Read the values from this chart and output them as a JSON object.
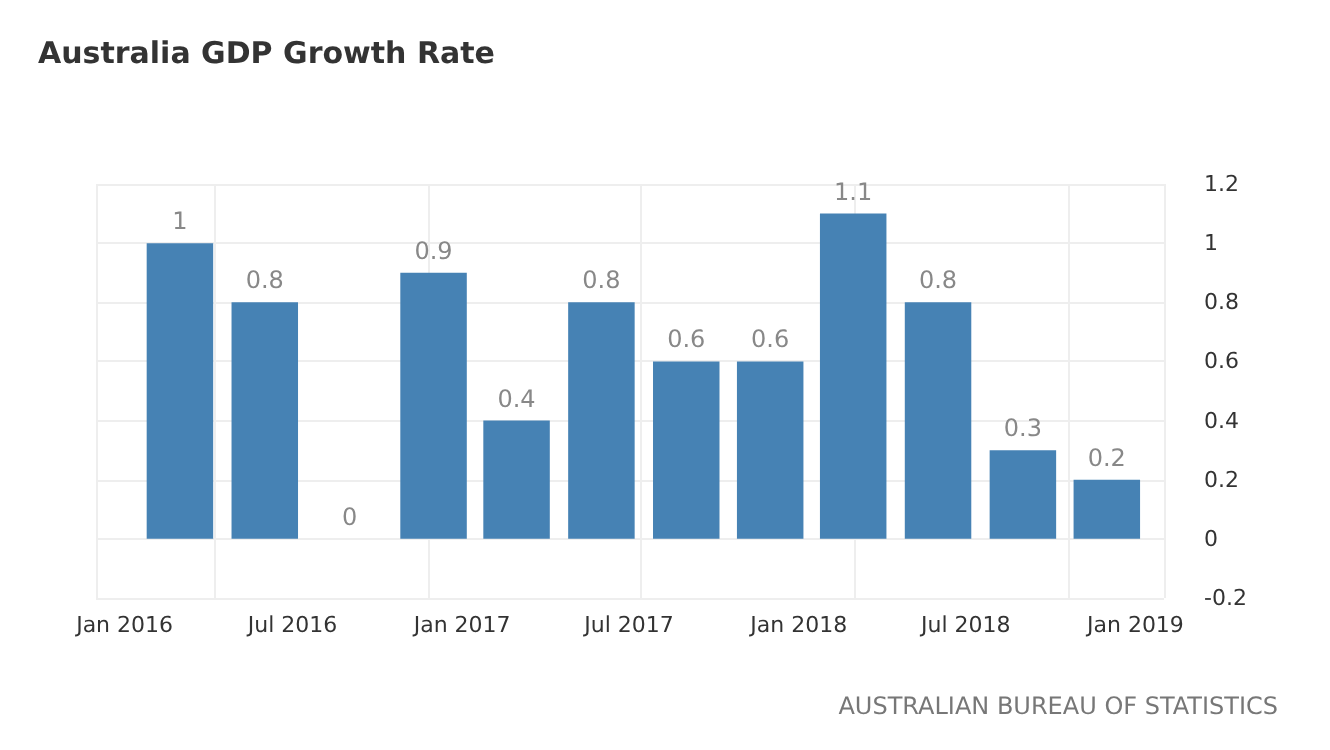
{
  "chart_data": {
    "type": "bar",
    "title": "Australia GDP Growth Rate",
    "x": [
      "2016-03",
      "2016-06",
      "2016-09",
      "2016-12",
      "2017-03",
      "2017-06",
      "2017-09",
      "2017-12",
      "2018-03",
      "2018-06",
      "2018-09",
      "2018-12"
    ],
    "values": [
      1,
      0.8,
      0,
      0.9,
      0.4,
      0.8,
      0.6,
      0.6,
      1.1,
      0.8,
      0.3,
      0.2
    ],
    "color": "#4682b4",
    "xlim": [
      "2015-12",
      "2019-02"
    ],
    "xticks": [
      {
        "value": "2016-01",
        "label": "Jan 2016"
      },
      {
        "value": "2016-07",
        "label": "Jul 2016"
      },
      {
        "value": "2017-01",
        "label": "Jan 2017"
      },
      {
        "value": "2017-07",
        "label": "Jul 2017"
      },
      {
        "value": "2018-01",
        "label": "Jan 2018"
      },
      {
        "value": "2018-07",
        "label": "Jul 2018"
      },
      {
        "value": "2019-01",
        "label": "Jan 2019"
      }
    ],
    "ylim": [
      -0.2,
      1.2
    ],
    "yticks": [
      -0.2,
      0,
      0.2,
      0.4,
      0.6,
      0.8,
      1,
      1.2
    ],
    "grid": true,
    "data_labels": true,
    "annotations": [
      "AUSTRALIAN BUREAU OF STATISTICS"
    ]
  }
}
